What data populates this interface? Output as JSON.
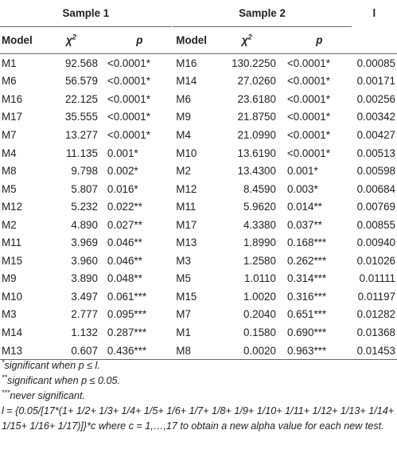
{
  "header": {
    "sample1": "Sample 1",
    "sample2": "Sample 2",
    "l": "l",
    "model": "Model",
    "chi": "χ",
    "chi_sup": "2",
    "p": "p"
  },
  "rows": [
    {
      "m1": "M1",
      "chi1": "92.568",
      "p1": "<0.0001*",
      "m2": "M16",
      "chi2": "130.2250",
      "p2": "<0.0001*",
      "l": "0.00085"
    },
    {
      "m1": "M6",
      "chi1": "56.579",
      "p1": "<0.0001*",
      "m2": "M14",
      "chi2": "27.0260",
      "p2": "<0.0001*",
      "l": "0.00171"
    },
    {
      "m1": "M16",
      "chi1": "22.125",
      "p1": "<0.0001*",
      "m2": "M6",
      "chi2": "23.6180",
      "p2": "<0.0001*",
      "l": "0.00256"
    },
    {
      "m1": "M17",
      "chi1": "35.555",
      "p1": "<0.0001*",
      "m2": "M9",
      "chi2": "21.8750",
      "p2": "<0.0001*",
      "l": "0.00342"
    },
    {
      "m1": "M7",
      "chi1": "13.277",
      "p1": "<0.0001*",
      "m2": "M4",
      "chi2": "21.0990",
      "p2": "<0.0001*",
      "l": "0.00427"
    },
    {
      "m1": "M4",
      "chi1": "11.135",
      "p1": "0.001*",
      "m2": "M10",
      "chi2": "13.6190",
      "p2": "<0.0001*",
      "l": "0.00513"
    },
    {
      "m1": "M8",
      "chi1": "9.798",
      "p1": "0.002*",
      "m2": "M2",
      "chi2": "13.4300",
      "p2": "0.001*",
      "l": "0.00598"
    },
    {
      "m1": "M5",
      "chi1": "5.807",
      "p1": "0.016*",
      "m2": "M12",
      "chi2": "8.4590",
      "p2": "0.003*",
      "l": "0.00684"
    },
    {
      "m1": "M12",
      "chi1": "5.232",
      "p1": "0.022**",
      "m2": "M11",
      "chi2": "5.9620",
      "p2": "0.014**",
      "l": "0.00769"
    },
    {
      "m1": "M2",
      "chi1": "4.890",
      "p1": "0.027**",
      "m2": "M17",
      "chi2": "4.3380",
      "p2": "0.037**",
      "l": "0.00855"
    },
    {
      "m1": "M11",
      "chi1": "3.969",
      "p1": "0.046**",
      "m2": "M13",
      "chi2": "1.8990",
      "p2": "0.168***",
      "l": "0.00940"
    },
    {
      "m1": "M15",
      "chi1": "3.960",
      "p1": "0.046**",
      "m2": "M3",
      "chi2": "1.2580",
      "p2": "0.262***",
      "l": "0.01026"
    },
    {
      "m1": "M9",
      "chi1": "3.890",
      "p1": "0.048**",
      "m2": "M5",
      "chi2": "1.0110",
      "p2": "0.314***",
      "l": "0.01111"
    },
    {
      "m1": "M10",
      "chi1": "3.497",
      "p1": "0.061***",
      "m2": "M15",
      "chi2": "1.0020",
      "p2": "0.316***",
      "l": "0.01197"
    },
    {
      "m1": "M3",
      "chi1": "2.777",
      "p1": "0.095***",
      "m2": "M7",
      "chi2": "0.2040",
      "p2": "0.651***",
      "l": "0.01282"
    },
    {
      "m1": "M14",
      "chi1": "1.132",
      "p1": "0.287***",
      "m2": "M1",
      "chi2": "0.1580",
      "p2": "0.690***",
      "l": "0.01368"
    },
    {
      "m1": "M13",
      "chi1": "0.607",
      "p1": "0.436***",
      "m2": "M8",
      "chi2": "0.0020",
      "p2": "0.963***",
      "l": "0.01453"
    }
  ],
  "notes": {
    "n1_mark": "*",
    "n1": "significant when p ≤ l.",
    "n2_mark": "**",
    "n2": "significant when p ≤ 0.05.",
    "n3_mark": "***",
    "n3": "never significant.",
    "n4": "l = {0.05/[17*(1+ 1/2+ 1/3+ 1/4+ 1/5+ 1/6+ 1/7+ 1/8+ 1/9+ 1/10+ 1/11+ 1/12+ 1/13+ 1/14+ 1/15+ 1/16+ 1/17)]}*c where c = 1,…,17 to obtain a new alpha value for each new test."
  }
}
